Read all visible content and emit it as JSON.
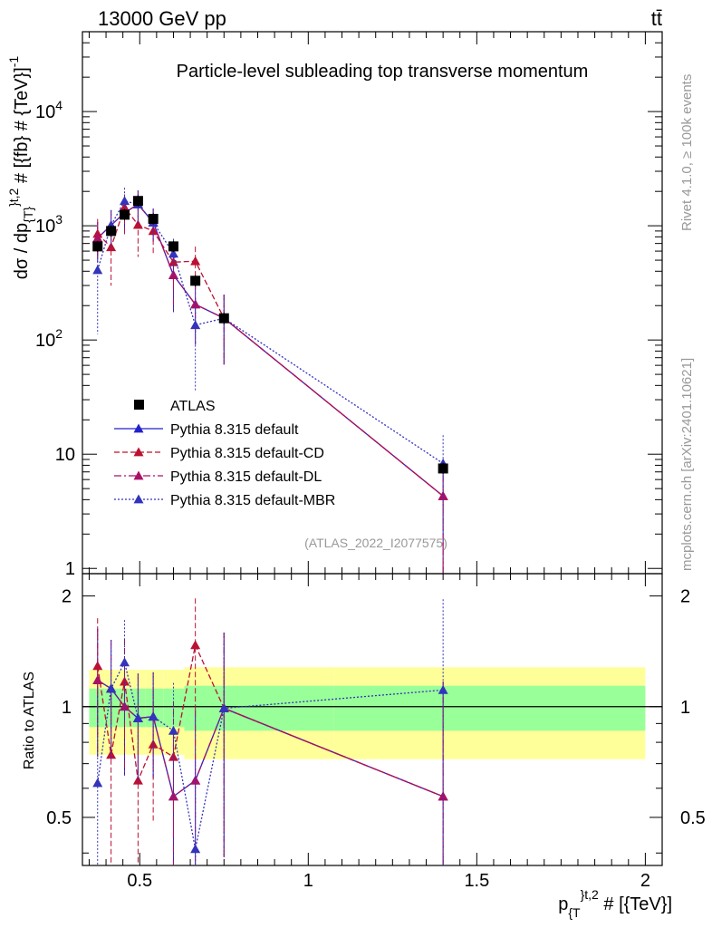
{
  "header": {
    "energy_label": "13000 GeV pp",
    "process_label": "tt̄"
  },
  "side": {
    "rivet_label": "Rivet 4.1.0, ≥ 100k events",
    "mcplots_label": "mcplots.cern.ch [arXiv:2401.10621]"
  },
  "chart_data": {
    "type": "scatter",
    "title": "Particle-level subleading top transverse momentum",
    "analysis_id": "(ATLAS_2022_I2077575)",
    "ylabel_main": "dσ / dp_{T}^{t,2} # [{fb} # {TeV}]^{-1}",
    "ylabel_ratio": "Ratio to ATLAS",
    "xlabel": "p_{T}^{t,2} # [{TeV}]",
    "xlim": [
      0.33,
      2.05
    ],
    "ylim_main": [
      0.9,
      50000
    ],
    "ylim_ratio": [
      0.37,
      2.3
    ],
    "main_y_scale": "log",
    "ratio_y_scale": "log",
    "main_y_ticks": [
      "1",
      "10",
      "10^2",
      "10^3",
      "10^4"
    ],
    "ratio_y_ticks": [
      "0.5",
      "1",
      "2"
    ],
    "x_ticks": [
      "0.5",
      "1",
      "1.5",
      "2"
    ],
    "legend_position": "center-left",
    "data": {
      "name": "ATLAS",
      "color": "#000000",
      "x": [
        0.375,
        0.415,
        0.455,
        0.495,
        0.54,
        0.6,
        0.665,
        0.75,
        1.4
      ],
      "y": [
        660,
        900,
        1250,
        1650,
        1150,
        660,
        330,
        155,
        7.5
      ],
      "ratio_band_inner": [
        0.12,
        0.12,
        0.12,
        0.12,
        0.12,
        0.12,
        0.14,
        0.14,
        0.14
      ],
      "ratio_band_outer": [
        0.26,
        0.26,
        0.26,
        0.26,
        0.26,
        0.26,
        0.28,
        0.28,
        0.28
      ]
    },
    "series": [
      {
        "name": "Pythia 8.315 default",
        "color": "#2222cc",
        "dash": "",
        "y": [
          780,
          1010,
          1300,
          1540,
          1070,
          370,
          205,
          155,
          4.3
        ],
        "ratio": [
          1.18,
          1.12,
          1.0,
          0.93,
          0.94,
          0.57,
          0.63,
          0.99,
          0.57
        ],
        "ratio_err": [
          0.45,
          0.4,
          0.35,
          0.3,
          0.3,
          0.3,
          0.35,
          0.6,
          0.6
        ]
      },
      {
        "name": "Pythia 8.315 default-CD",
        "color": "#bb1133",
        "dash": "6,3",
        "y": [
          850,
          650,
          1450,
          1020,
          900,
          480,
          490,
          155,
          4.3
        ],
        "ratio": [
          1.29,
          0.74,
          1.17,
          0.63,
          0.79,
          0.73,
          1.47,
          0.99,
          0.57
        ],
        "ratio_err": [
          0.45,
          0.4,
          0.35,
          0.3,
          0.3,
          0.3,
          0.5,
          0.6,
          0.6
        ]
      },
      {
        "name": "Pythia 8.315 default-DL",
        "color": "#aa1166",
        "dash": "8,3,2,3",
        "y": [
          780,
          1010,
          1300,
          1540,
          1070,
          370,
          205,
          155,
          4.3
        ],
        "ratio": [
          1.18,
          1.12,
          1.0,
          0.93,
          0.94,
          0.57,
          0.63,
          0.99,
          0.57
        ],
        "ratio_err": [
          0.45,
          0.4,
          0.35,
          0.3,
          0.3,
          0.3,
          0.35,
          0.6,
          0.6
        ]
      },
      {
        "name": "Pythia 8.315 default-MBR",
        "color": "#3333bb",
        "dash": "2,2",
        "y": [
          410,
          1010,
          1650,
          1540,
          1070,
          570,
          135,
          155,
          8.3
        ],
        "ratio": [
          0.62,
          1.12,
          1.32,
          0.93,
          0.94,
          0.86,
          0.41,
          0.99,
          1.11
        ],
        "ratio_err": [
          0.45,
          0.4,
          0.4,
          0.3,
          0.3,
          0.3,
          0.3,
          0.6,
          0.85
        ]
      }
    ]
  }
}
